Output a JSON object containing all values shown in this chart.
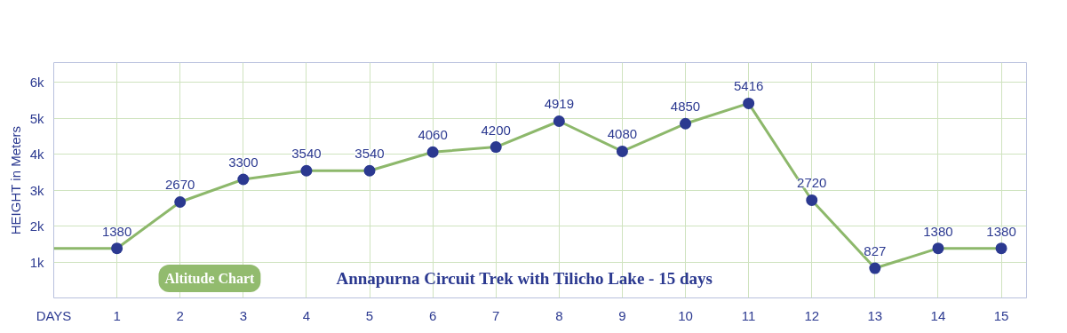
{
  "chart_data": {
    "type": "line",
    "title": "Annapurna Circuit Trek with Tilicho Lake - 15 days",
    "subtitle": "Altitude Chart",
    "ylabel": "HEIGHT in Meters",
    "x": [
      0,
      1,
      2,
      3,
      4,
      5,
      6,
      7,
      8,
      9,
      10,
      11,
      12,
      13,
      14,
      15
    ],
    "series": [
      {
        "color": "#8db86b",
        "values": [
          1380,
          1380,
          2670,
          3300,
          3540,
          3540,
          4060,
          4200,
          4919,
          4080,
          4850,
          5416,
          2720,
          827,
          1380,
          1380
        ],
        "value_labels": [
          null,
          "1380",
          "2670",
          "3300",
          "3540",
          "3540",
          "4060",
          "4200",
          "4919",
          "4080",
          "4850",
          "5416",
          "2720",
          "827",
          "1380",
          "1380"
        ]
      }
    ],
    "marker": "circle",
    "xlim": [
      0,
      15.4
    ],
    "ylim": [
      0,
      6550
    ],
    "xticks": [
      {
        "value": 0,
        "label": "DAYS"
      },
      1,
      2,
      3,
      4,
      5,
      6,
      7,
      8,
      9,
      10,
      11,
      12,
      13,
      14,
      15
    ],
    "yticks": [
      {
        "value": 1000,
        "label": "1k"
      },
      {
        "value": 2000,
        "label": "2k"
      },
      {
        "value": 3000,
        "label": "3k"
      },
      {
        "value": 4000,
        "label": "4k"
      },
      {
        "value": 5000,
        "label": "5k"
      },
      {
        "value": 6000,
        "label": "6k"
      }
    ],
    "grid": true
  }
}
